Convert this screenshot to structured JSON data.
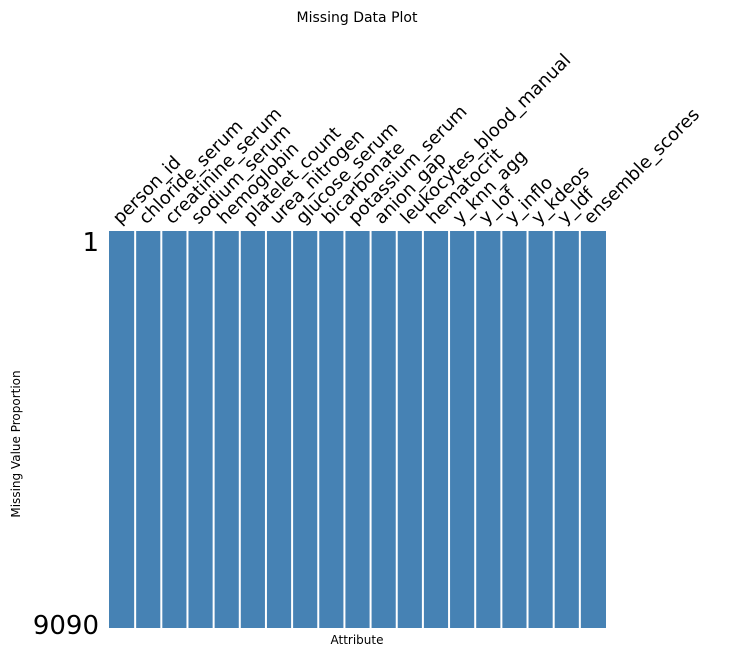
{
  "chart_data": {
    "type": "heatmap",
    "title": "Missing Data Plot",
    "xlabel": "Attribute",
    "ylabel": "Missing Value Proportion",
    "row_labels": [
      "1",
      "9090"
    ],
    "total_rows": 9090,
    "columns": [
      "person_id",
      "chloride_serum",
      "creatinine_serum",
      "sodium_serum",
      "hemoglobin",
      "platelet_count",
      "urea_nitrogen",
      "glucose_serum",
      "bicarbonate",
      "potassium_serum",
      "anion_gap",
      "leukocytes_blood_manual",
      "hematocrit",
      "y_knn_agg",
      "y_lof",
      "y_inflo",
      "y_kdeos",
      "y_ldf",
      "ensemble_scores"
    ],
    "missing_counts": [
      0,
      0,
      0,
      0,
      0,
      0,
      0,
      0,
      0,
      0,
      0,
      0,
      0,
      0,
      0,
      0,
      0,
      0,
      0
    ],
    "colors": {
      "present": "#4682b4",
      "missing": "#ffffff",
      "separator": "#ffffff"
    }
  }
}
